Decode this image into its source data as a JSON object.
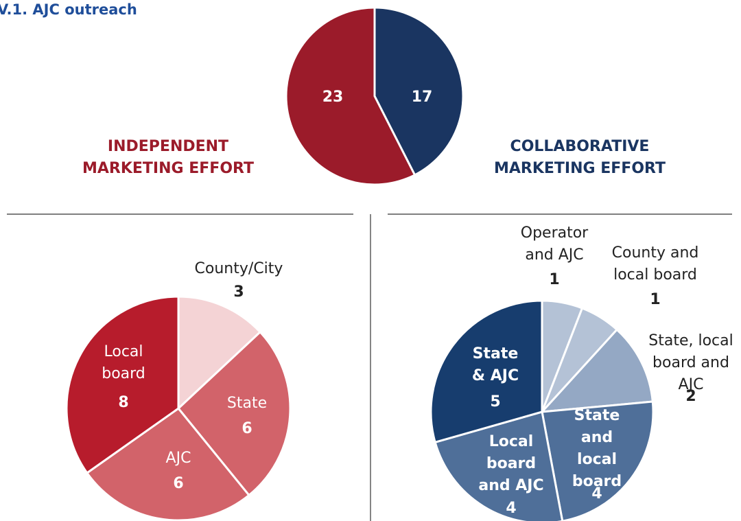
{
  "chart_data": [
    {
      "type": "pie",
      "title": "V.1. AJC outreach",
      "categories": [
        "COLLABORATIVE MARKETING EFFORT",
        "INDEPENDENT MARKETING EFFORT"
      ],
      "values": [
        17,
        23
      ],
      "colors": [
        "#1a3561",
        "#9b1b2a"
      ]
    },
    {
      "type": "pie",
      "categories": [
        "County/City",
        "State",
        "AJC",
        "Local board"
      ],
      "values": [
        3,
        6,
        6,
        8
      ],
      "colors": [
        "#f4d3d5",
        "#d2636a",
        "#d2636a",
        "#b71c2c"
      ]
    },
    {
      "type": "pie",
      "categories": [
        "Operator and AJC",
        "County and local board",
        "State, local board and AJC",
        "State and local board",
        "Local board and AJC",
        "State & AJC"
      ],
      "values": [
        1,
        1,
        2,
        4,
        4,
        5
      ],
      "colors": [
        "#b4c2d6",
        "#b4c2d6",
        "#94a8c4",
        "#4f6f99",
        "#4f6f99",
        "#173d6e"
      ]
    }
  ]
}
